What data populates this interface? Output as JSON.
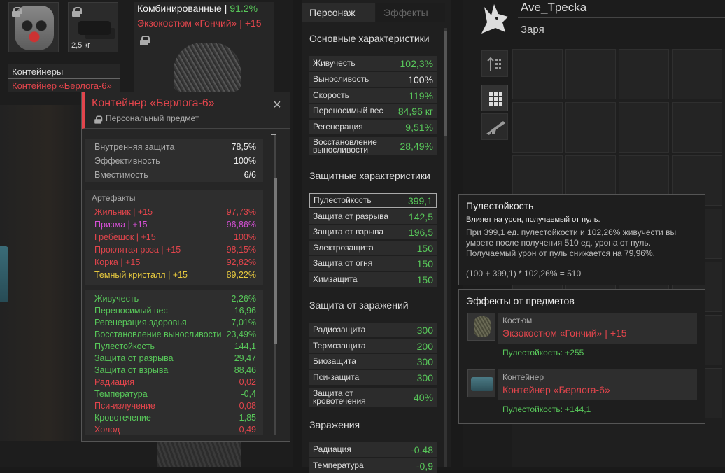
{
  "equipment": {
    "weight": "2,5 кг",
    "armor_category": "Комбинированные",
    "armor_percent": "91.2%",
    "armor_name": "Экзокостюм «Гончий» | +15",
    "containers_label": "Контейнеры",
    "container_name": "Контейнер «Берлога-6»"
  },
  "popup": {
    "title": "Контейнер «Берлога-6»",
    "subtitle": "Персональный предмет",
    "stats": [
      {
        "label": "Внутренняя защита",
        "value": "78,5%"
      },
      {
        "label": "Эффективность",
        "value": "100%"
      },
      {
        "label": "Вместимость",
        "value": "6/6"
      }
    ],
    "artifacts_label": "Артефакты",
    "artifacts": [
      {
        "name": "Жильник | +15",
        "value": "97,73%",
        "color": "#e2454c"
      },
      {
        "name": "Призма | +15",
        "value": "96,86%",
        "color": "#d550d5"
      },
      {
        "name": "Гребешок | +15",
        "value": "100%",
        "color": "#e2454c"
      },
      {
        "name": "Проклятая роза | +15",
        "value": "98,15%",
        "color": "#e2454c"
      },
      {
        "name": "Корка | +15",
        "value": "92,82%",
        "color": "#e2454c"
      },
      {
        "name": "Темный кристалл | +15",
        "value": "89,22%",
        "color": "#e6c83e"
      }
    ],
    "effects": [
      {
        "label": "Живучесть",
        "value": "2,26%",
        "color": "#58c85a"
      },
      {
        "label": "Переносимый вес",
        "value": "16,96",
        "color": "#58c85a"
      },
      {
        "label": "Регенерация здоровья",
        "value": "7,01%",
        "color": "#58c85a"
      },
      {
        "label": "Восстановление выносливости",
        "value": "23,49%",
        "color": "#58c85a"
      },
      {
        "label": "Пулестойкость",
        "value": "144,1",
        "color": "#58c85a"
      },
      {
        "label": "Защита от разрыва",
        "value": "29,47",
        "color": "#58c85a"
      },
      {
        "label": "Защита от взрыва",
        "value": "88,46",
        "color": "#58c85a"
      },
      {
        "label": "Радиация",
        "value": "0,02",
        "color": "#e2454c"
      },
      {
        "label": "Температура",
        "value": "-0,4",
        "color": "#58c85a"
      },
      {
        "label": "Пси-излучение",
        "value": "0,08",
        "color": "#e2454c"
      },
      {
        "label": "Кровотечение",
        "value": "-1,85",
        "color": "#58c85a"
      },
      {
        "label": "Холод",
        "value": "0,49",
        "color": "#e2454c"
      }
    ]
  },
  "character": {
    "tabs": [
      "Персонаж",
      "Эффекты"
    ],
    "sections": {
      "basic": "Основные характеристики",
      "protective": "Защитные характеристики",
      "infection_protection": "Защита от заражений",
      "infections": "Заражения"
    },
    "basic_stats": [
      {
        "label": "Живучесть",
        "value": "102,3%"
      },
      {
        "label": "Выносливость",
        "value": "100%",
        "color": "#eeeeee"
      },
      {
        "label": "Скорость",
        "value": "119%"
      },
      {
        "label": "Переносимый вес",
        "value": "84,96 кг"
      },
      {
        "label": "Регенерация",
        "value": "9,51%"
      },
      {
        "label": "Восстановление выносливости",
        "value": "28,49%"
      }
    ],
    "protective_stats": [
      {
        "label": "Пулестойкость",
        "value": "399,1"
      },
      {
        "label": "Защита от разрыва",
        "value": "142,5"
      },
      {
        "label": "Защита от взрыва",
        "value": "196,5"
      },
      {
        "label": "Электрозащита",
        "value": "150"
      },
      {
        "label": "Защита от огня",
        "value": "150"
      },
      {
        "label": "Химзащита",
        "value": "150"
      }
    ],
    "infection_stats": [
      {
        "label": "Радиозащита",
        "value": "300"
      },
      {
        "label": "Термозащита",
        "value": "200"
      },
      {
        "label": "Биозащита",
        "value": "300"
      },
      {
        "label": "Пси-защита",
        "value": "300"
      },
      {
        "label": "Защита от кровотечения",
        "value": "40%"
      }
    ],
    "infection_values": [
      {
        "label": "Радиация",
        "value": "-0,48"
      },
      {
        "label": "Температура",
        "value": "-0,9"
      }
    ]
  },
  "profile": {
    "name": "Ave_Tpecka",
    "faction": "Заря"
  },
  "tooltip": {
    "title": "Пулестойкость",
    "desc": "Влияет на урон, получаемый от пуль.",
    "detail1": "При 399,1 ед. пулестойкости и 102,26% живучести вы",
    "detail2": "умрете после получения 510 ед. урона от пуль.",
    "detail3": "Получаемый урон от пуль снижается на 79,96%.",
    "formula": "(100 + 399,1) * 102,26% = 510"
  },
  "item_effects": {
    "title": "Эффекты от предметов",
    "items": [
      {
        "category": "Костюм",
        "name": "Экзокостюм «Гончий» | +15",
        "effect": "Пулестойкость: +255"
      },
      {
        "category": "Контейнер",
        "name": "Контейнер «Берлога-6»",
        "effect": "Пулестойкость: +144,1"
      }
    ]
  }
}
